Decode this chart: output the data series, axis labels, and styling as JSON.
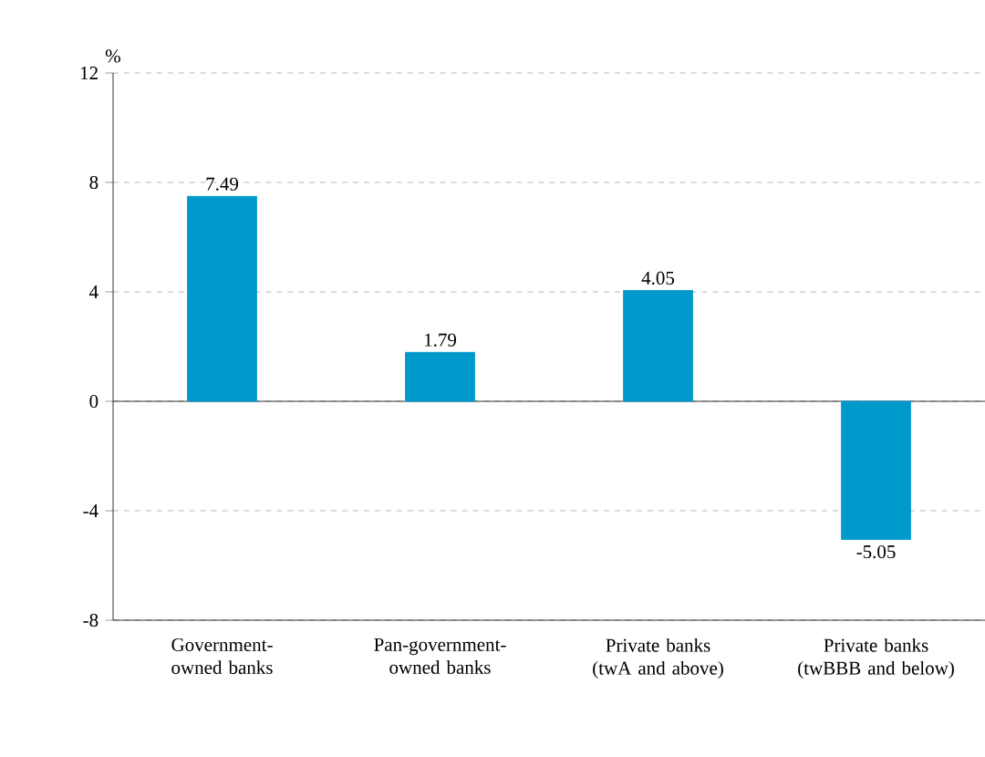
{
  "chart_data": {
    "type": "bar",
    "ylabel": "%",
    "categories": [
      "Government-owned banks",
      "Pan-government-owned banks",
      "Private banks (twA and above)",
      "Private banks (twBBB and below)"
    ],
    "values": [
      7.49,
      1.79,
      4.05,
      -5.05
    ],
    "color": "#0099cc",
    "ylim": [
      -8,
      12
    ],
    "yticks": [
      -8,
      -4,
      0,
      4,
      8,
      12
    ],
    "grid": "y",
    "data_labels": true,
    "ref_lines": [
      {
        "axis": "y",
        "value": 0,
        "line_style": "solid",
        "color": "#000000"
      }
    ]
  }
}
